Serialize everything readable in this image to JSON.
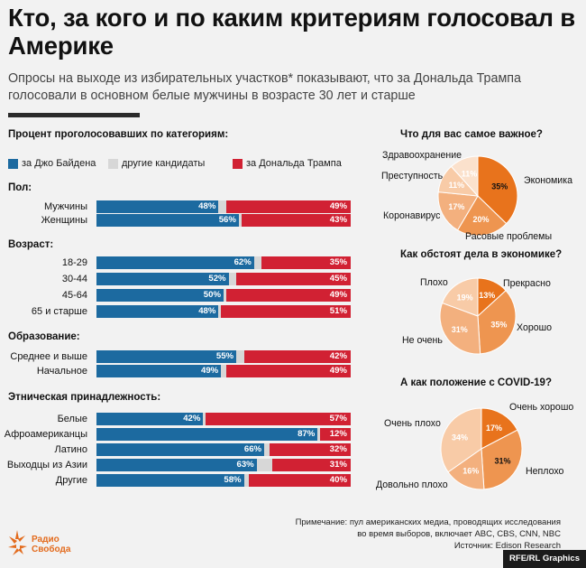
{
  "header": {
    "title": "Кто, за кого и по каким критериям голосовал в Америке",
    "subtitle": "Опросы на выходе из избирательных участков* показывают, что за Дональда Трампа голосовали в основном белые мужчины в возрасте 30 лет и старше"
  },
  "colors": {
    "biden": "#1c6aa0",
    "other": "#d7d7d7",
    "trump": "#d12133"
  },
  "left": {
    "section_title": "Процент проголосовавших по категориям:",
    "legend": [
      "за Джо Байдена",
      "другие кандидаты",
      "за Дональда Трампа"
    ]
  },
  "chart_data": [
    {
      "type": "bar",
      "stacked": true,
      "title": "Процент проголосовавших по категориям:",
      "series_names": [
        "за Джо Байдена",
        "другие кандидаты",
        "за Дональда Трампа"
      ],
      "groups": [
        {
          "name": "Пол:",
          "rows": [
            {
              "label": "Мужчины",
              "biden": 48,
              "trump": 49
            },
            {
              "label": "Женщины",
              "biden": 56,
              "trump": 43
            }
          ]
        },
        {
          "name": "Возраст:",
          "rows": [
            {
              "label": "18-29",
              "biden": 62,
              "trump": 35
            },
            {
              "label": "30-44",
              "biden": 52,
              "trump": 45
            },
            {
              "label": "45-64",
              "biden": 50,
              "trump": 49
            },
            {
              "label": "65 и старше",
              "biden": 48,
              "trump": 51
            }
          ]
        },
        {
          "name": "Образование:",
          "rows": [
            {
              "label": "Среднее и выше",
              "biden": 55,
              "trump": 42
            },
            {
              "label": "Начальное",
              "biden": 49,
              "trump": 49
            }
          ]
        },
        {
          "name": "Этническая принадлежность:",
          "rows": [
            {
              "label": "Белые",
              "biden": 42,
              "trump": 57
            },
            {
              "label": "Афроамериканцы",
              "biden": 87,
              "trump": 12
            },
            {
              "label": "Латино",
              "biden": 66,
              "trump": 32
            },
            {
              "label": "Выходцы из Азии",
              "biden": 63,
              "trump": 31
            },
            {
              "label": "Другие",
              "biden": 58,
              "trump": 40
            }
          ]
        }
      ]
    },
    {
      "type": "pie",
      "title": "Что для вас самое важное?",
      "slices": [
        {
          "label": "Экономика",
          "value": 35,
          "color": "#e8731c"
        },
        {
          "label": "Расовые проблемы",
          "value": 20,
          "color": "#ee9550"
        },
        {
          "label": "Коронавирус",
          "value": 17,
          "color": "#f3b07e"
        },
        {
          "label": "Преступность",
          "value": 11,
          "color": "#f8cba7"
        },
        {
          "label": "Здравоохранение",
          "value": 11,
          "color": "#fbe1cc"
        }
      ]
    },
    {
      "type": "pie",
      "title": "Как обстоят дела в экономике?",
      "slices": [
        {
          "label": "Прекрасно",
          "value": 13,
          "color": "#e8731c"
        },
        {
          "label": "Хорошо",
          "value": 35,
          "color": "#ee9550"
        },
        {
          "label": "Не очень",
          "value": 31,
          "color": "#f3b07e"
        },
        {
          "label": "Плохо",
          "value": 19,
          "color": "#f8cba7"
        }
      ]
    },
    {
      "type": "pie",
      "title": "А как положение с COVID-19?",
      "slices": [
        {
          "label": "Очень хорошо",
          "value": 17,
          "color": "#e8731c"
        },
        {
          "label": "Неплохо",
          "value": 31,
          "color": "#ee9550"
        },
        {
          "label": "Довольно плохо",
          "value": 16,
          "color": "#f3b07e"
        },
        {
          "label": "Очень плохо",
          "value": 34,
          "color": "#f8cba7"
        }
      ]
    }
  ],
  "footer": {
    "note_line1": "Примечание: пул американских медиа, проводящих исследования",
    "note_line2": "во время выборов, включает ABC, CBS, CNN, NBC",
    "source": "Источник: Edison Research",
    "logo_line1": "Радио",
    "logo_line2": "Свобода",
    "credit": "RFE/RL Graphics"
  }
}
